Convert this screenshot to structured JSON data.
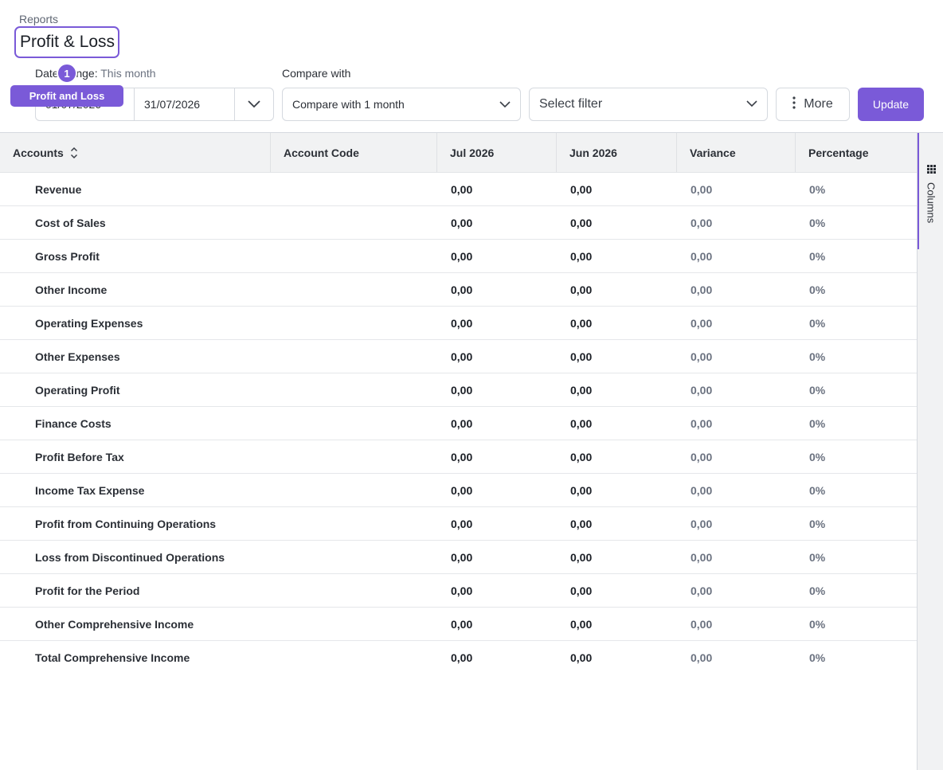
{
  "breadcrumb": "Reports",
  "page_title": "Profit & Loss",
  "tutorial": {
    "step": "1",
    "tooltip": "Profit and Loss"
  },
  "date_range": {
    "label": "Date Range:",
    "preset": "This month",
    "from": "01/07/2026",
    "to": "31/07/2026"
  },
  "compare": {
    "label": "Compare with",
    "value": "Compare with 1 month"
  },
  "filter": {
    "placeholder": "Select filter"
  },
  "more_label": "More",
  "update_label": "Update",
  "side_panel": {
    "label": "Columns",
    "icon": "grid-icon"
  },
  "colors": {
    "accent": "#7a5ad8",
    "header_bg": "#f1f2f3"
  },
  "table": {
    "columns": [
      "Accounts",
      "Account Code",
      "Jul 2026",
      "Jun 2026",
      "Variance",
      "Percentage"
    ],
    "rows": [
      {
        "account": "Revenue",
        "code": "",
        "jul": "0,00",
        "jun": "0,00",
        "variance": "0,00",
        "pct": "0%"
      },
      {
        "account": "Cost of Sales",
        "code": "",
        "jul": "0,00",
        "jun": "0,00",
        "variance": "0,00",
        "pct": "0%"
      },
      {
        "account": "Gross Profit",
        "code": "",
        "jul": "0,00",
        "jun": "0,00",
        "variance": "0,00",
        "pct": "0%"
      },
      {
        "account": "Other Income",
        "code": "",
        "jul": "0,00",
        "jun": "0,00",
        "variance": "0,00",
        "pct": "0%"
      },
      {
        "account": "Operating Expenses",
        "code": "",
        "jul": "0,00",
        "jun": "0,00",
        "variance": "0,00",
        "pct": "0%"
      },
      {
        "account": "Other Expenses",
        "code": "",
        "jul": "0,00",
        "jun": "0,00",
        "variance": "0,00",
        "pct": "0%"
      },
      {
        "account": "Operating Profit",
        "code": "",
        "jul": "0,00",
        "jun": "0,00",
        "variance": "0,00",
        "pct": "0%"
      },
      {
        "account": "Finance Costs",
        "code": "",
        "jul": "0,00",
        "jun": "0,00",
        "variance": "0,00",
        "pct": "0%"
      },
      {
        "account": "Profit Before Tax",
        "code": "",
        "jul": "0,00",
        "jun": "0,00",
        "variance": "0,00",
        "pct": "0%"
      },
      {
        "account": "Income Tax Expense",
        "code": "",
        "jul": "0,00",
        "jun": "0,00",
        "variance": "0,00",
        "pct": "0%"
      },
      {
        "account": "Profit from Continuing Operations",
        "code": "",
        "jul": "0,00",
        "jun": "0,00",
        "variance": "0,00",
        "pct": "0%"
      },
      {
        "account": "Loss from Discontinued Operations",
        "code": "",
        "jul": "0,00",
        "jun": "0,00",
        "variance": "0,00",
        "pct": "0%"
      },
      {
        "account": "Profit for the Period",
        "code": "",
        "jul": "0,00",
        "jun": "0,00",
        "variance": "0,00",
        "pct": "0%"
      },
      {
        "account": "Other Comprehensive Income",
        "code": "",
        "jul": "0,00",
        "jun": "0,00",
        "variance": "0,00",
        "pct": "0%"
      },
      {
        "account": "Total Comprehensive Income",
        "code": "",
        "jul": "0,00",
        "jun": "0,00",
        "variance": "0,00",
        "pct": "0%"
      }
    ]
  }
}
